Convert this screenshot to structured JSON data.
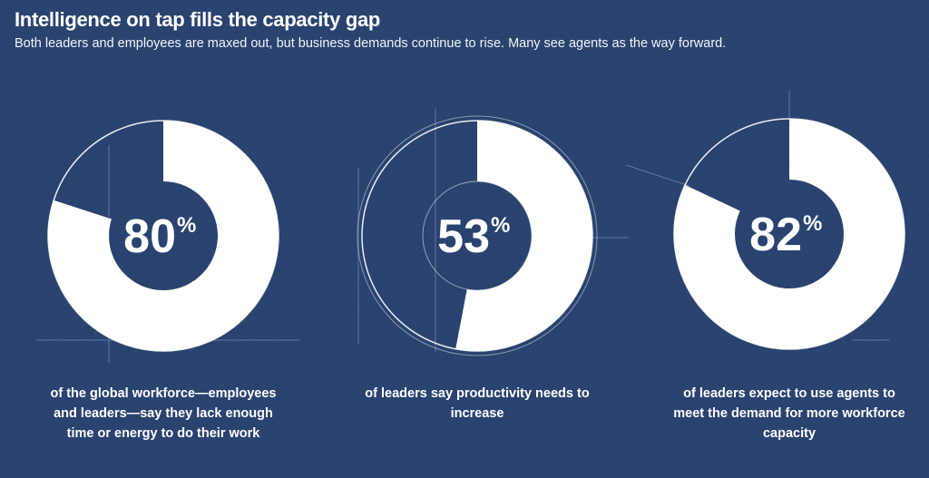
{
  "title": "Intelligence on tap fills the capacity gap",
  "subtitle": "Both leaders and employees are maxed out, but business demands continue to rise. Many see agents as the way forward.",
  "colors": {
    "background": "#233d6b",
    "fill": "#ffffff",
    "track": "#233d6b"
  },
  "chart_data": [
    {
      "type": "pie",
      "style": "donut",
      "value": 80,
      "label": "80",
      "unit": "%",
      "caption": "of the global workforce—employees and leaders—say they lack enough time or energy to do their work"
    },
    {
      "type": "pie",
      "style": "donut",
      "value": 53,
      "label": "53",
      "unit": "%",
      "caption": "of leaders say productivity needs to increase"
    },
    {
      "type": "pie",
      "style": "donut",
      "value": 82,
      "label": "82",
      "unit": "%",
      "caption": "of leaders expect to use agents to meet the demand for more workforce capacity"
    }
  ]
}
